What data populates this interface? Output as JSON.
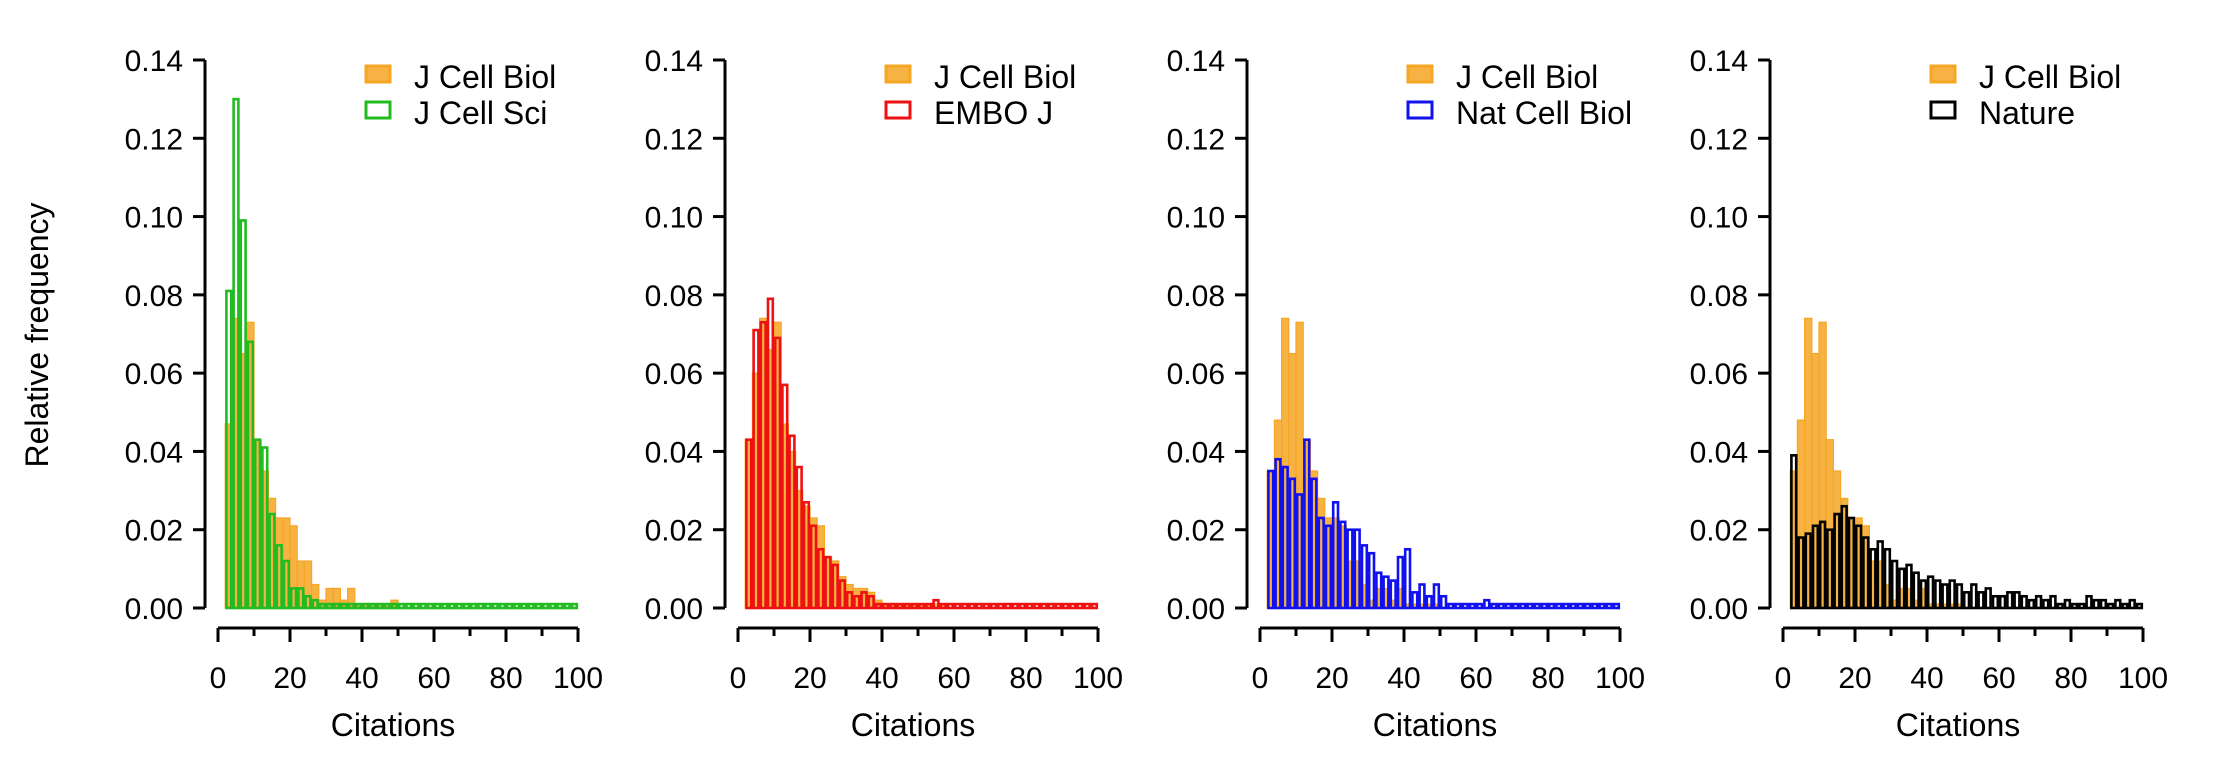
{
  "figure": {
    "ylabel": "Relative frequency",
    "xlabel": "Citations"
  },
  "chart_data": [
    {
      "type": "histogram",
      "title": "",
      "xlabel": "Citations",
      "ylabel": "Relative frequency",
      "xlim": [
        0,
        100
      ],
      "ylim": [
        0,
        0.14
      ],
      "xticks": [
        "0",
        "20",
        "40",
        "60",
        "80",
        "100"
      ],
      "yticks": [
        "0.00",
        "0.02",
        "0.04",
        "0.06",
        "0.08",
        "0.10",
        "0.12",
        "0.14"
      ],
      "bin_width": 2,
      "legend_position": "top-right",
      "series": [
        {
          "name": "J Cell Biol",
          "color": "#f5a623",
          "filled": true,
          "bin_start": 2,
          "values": [
            0.047,
            0.074,
            0.065,
            0.073,
            0.043,
            0.035,
            0.028,
            0.023,
            0.023,
            0.021,
            0.012,
            0.012,
            0.006,
            0.002,
            0.005,
            0.005,
            0.002,
            0.005,
            0.001,
            0.001,
            0.001,
            0.001,
            0.001,
            0.002
          ]
        },
        {
          "name": "J Cell Sci",
          "color": "#22bb22",
          "filled": false,
          "bin_start": 2,
          "values": [
            0.081,
            0.13,
            0.099,
            0.068,
            0.043,
            0.041,
            0.024,
            0.016,
            0.012,
            0.005,
            0.005,
            0.003,
            0.002,
            0.001,
            0.001,
            0.001,
            0.001,
            0.001,
            0.001,
            0.001,
            0.001,
            0.001,
            0.001,
            0.001,
            0.001,
            0.001,
            0.001,
            0.001,
            0.001,
            0.001,
            0.001,
            0.001,
            0.001,
            0.001,
            0.001,
            0.001,
            0.001,
            0.001,
            0.001,
            0.001,
            0.001,
            0.001,
            0.001,
            0.001,
            0.001,
            0.001,
            0.001,
            0.001,
            0.001
          ]
        }
      ]
    },
    {
      "type": "histogram",
      "title": "",
      "xlabel": "Citations",
      "ylabel": "",
      "xlim": [
        0,
        100
      ],
      "ylim": [
        0,
        0.14
      ],
      "xticks": [
        "0",
        "20",
        "40",
        "60",
        "80",
        "100"
      ],
      "yticks": [
        "0.00",
        "0.02",
        "0.04",
        "0.06",
        "0.08",
        "0.10",
        "0.12",
        "0.14"
      ],
      "bin_width": 2,
      "legend_position": "top-right",
      "series": [
        {
          "name": "J Cell Biol",
          "color": "#f5a623",
          "filled": true,
          "bin_start": 2,
          "values": [
            0.043,
            0.06,
            0.074,
            0.066,
            0.073,
            0.047,
            0.04,
            0.03,
            0.026,
            0.023,
            0.021,
            0.013,
            0.012,
            0.008,
            0.006,
            0.005,
            0.005,
            0.004,
            0.002,
            0.001,
            0.001,
            0.001,
            0.001,
            0.001,
            0.001,
            0.001,
            0.001,
            0.001
          ]
        },
        {
          "name": "EMBO J",
          "color": "#ee1111",
          "filled": false,
          "bin_start": 2,
          "values": [
            0.043,
            0.071,
            0.073,
            0.079,
            0.069,
            0.057,
            0.044,
            0.036,
            0.027,
            0.021,
            0.015,
            0.013,
            0.011,
            0.007,
            0.004,
            0.003,
            0.004,
            0.003,
            0.001,
            0.001,
            0.001,
            0.001,
            0.001,
            0.001,
            0.001,
            0.001,
            0.002,
            0.001,
            0.001,
            0.001,
            0.001,
            0.001,
            0.001,
            0.001,
            0.001,
            0.001,
            0.001,
            0.001,
            0.001,
            0.001,
            0.001,
            0.001,
            0.001,
            0.001,
            0.001,
            0.001,
            0.001,
            0.001,
            0.001
          ]
        }
      ]
    },
    {
      "type": "histogram",
      "title": "",
      "xlabel": "Citations",
      "ylabel": "",
      "xlim": [
        0,
        100
      ],
      "ylim": [
        0,
        0.14
      ],
      "xticks": [
        "0",
        "20",
        "40",
        "60",
        "80",
        "100"
      ],
      "yticks": [
        "0.00",
        "0.02",
        "0.04",
        "0.06",
        "0.08",
        "0.10",
        "0.12",
        "0.14"
      ],
      "bin_width": 2,
      "legend_position": "top-right",
      "series": [
        {
          "name": "J Cell Biol",
          "color": "#f5a623",
          "filled": true,
          "bin_start": 2,
          "values": [
            0.035,
            0.048,
            0.074,
            0.065,
            0.073,
            0.043,
            0.035,
            0.028,
            0.023,
            0.023,
            0.021,
            0.012,
            0.012,
            0.006,
            0.002,
            0.005,
            0.005,
            0.002,
            0.005,
            0.001,
            0.001,
            0.001,
            0.001,
            0.001
          ]
        },
        {
          "name": "Nat Cell Biol",
          "color": "#1111ee",
          "filled": false,
          "bin_start": 2,
          "values": [
            0.035,
            0.038,
            0.036,
            0.033,
            0.029,
            0.043,
            0.033,
            0.023,
            0.021,
            0.027,
            0.022,
            0.02,
            0.02,
            0.016,
            0.014,
            0.009,
            0.008,
            0.007,
            0.013,
            0.015,
            0.004,
            0.006,
            0.003,
            0.006,
            0.003,
            0.001,
            0.001,
            0.001,
            0.001,
            0.001,
            0.002,
            0.001,
            0.001,
            0.001,
            0.001,
            0.001,
            0.001,
            0.001,
            0.001,
            0.001,
            0.001,
            0.001,
            0.001,
            0.001,
            0.001,
            0.001,
            0.001,
            0.001,
            0.001
          ]
        }
      ]
    },
    {
      "type": "histogram",
      "title": "",
      "xlabel": "Citations",
      "ylabel": "",
      "xlim": [
        0,
        100
      ],
      "ylim": [
        0,
        0.14
      ],
      "xticks": [
        "0",
        "20",
        "40",
        "60",
        "80",
        "100"
      ],
      "yticks": [
        "0.00",
        "0.02",
        "0.04",
        "0.06",
        "0.08",
        "0.10",
        "0.12",
        "0.14"
      ],
      "bin_width": 2,
      "legend_position": "top-right",
      "series": [
        {
          "name": "J Cell Biol",
          "color": "#f5a623",
          "filled": true,
          "bin_start": 2,
          "values": [
            0.035,
            0.048,
            0.074,
            0.065,
            0.073,
            0.043,
            0.035,
            0.028,
            0.023,
            0.023,
            0.021,
            0.012,
            0.012,
            0.006,
            0.002,
            0.005,
            0.005,
            0.002,
            0.005,
            0.001,
            0.001,
            0.001,
            0.001,
            0.001
          ]
        },
        {
          "name": "Nature",
          "color": "#000000",
          "filled": false,
          "bin_start": 2,
          "values": [
            0.039,
            0.018,
            0.019,
            0.021,
            0.022,
            0.02,
            0.024,
            0.026,
            0.023,
            0.021,
            0.018,
            0.015,
            0.017,
            0.015,
            0.012,
            0.01,
            0.011,
            0.009,
            0.007,
            0.008,
            0.007,
            0.006,
            0.007,
            0.006,
            0.004,
            0.006,
            0.004,
            0.005,
            0.003,
            0.003,
            0.004,
            0.004,
            0.003,
            0.002,
            0.003,
            0.002,
            0.003,
            0.001,
            0.002,
            0.001,
            0.001,
            0.003,
            0.002,
            0.002,
            0.001,
            0.002,
            0.001,
            0.002,
            0.001
          ]
        }
      ]
    }
  ]
}
